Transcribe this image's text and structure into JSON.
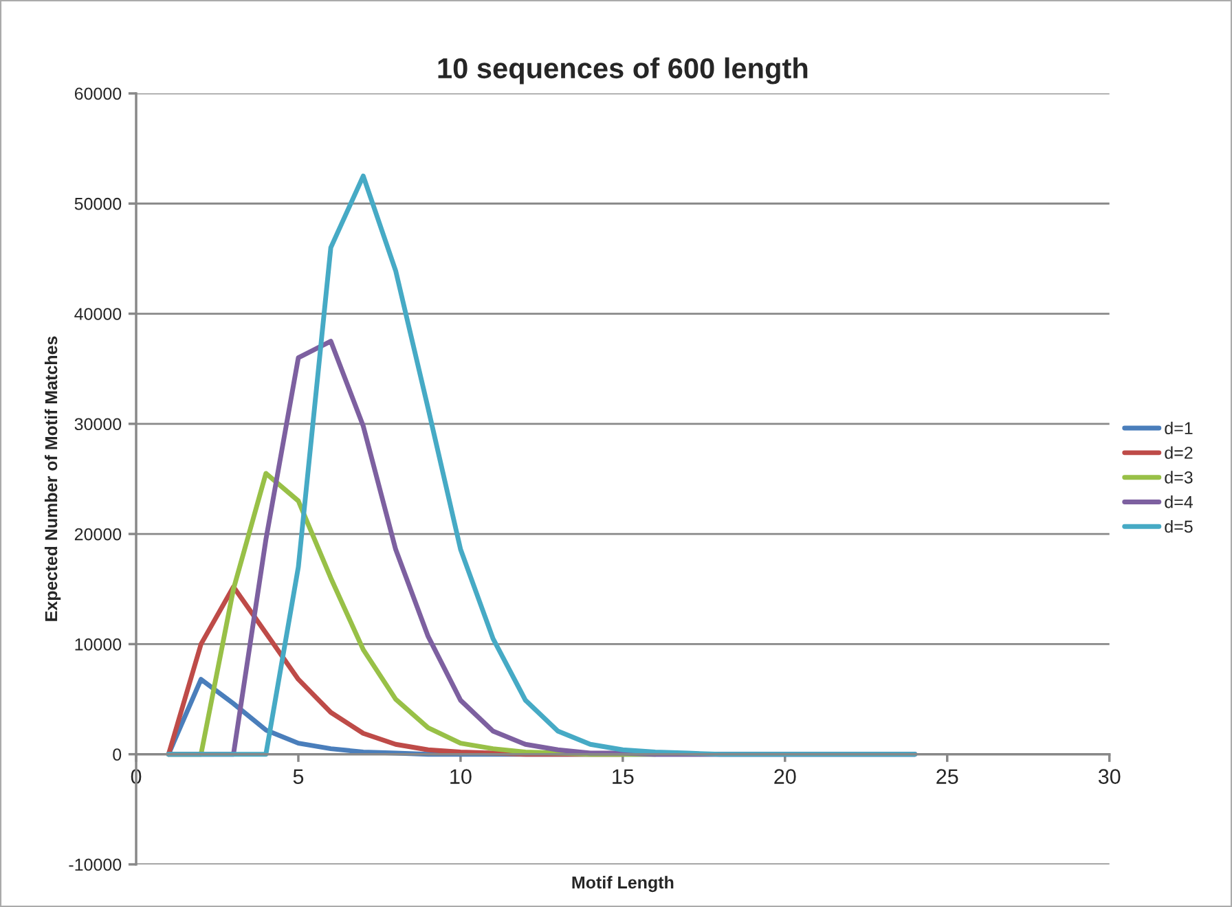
{
  "chart_data": {
    "type": "line",
    "title": "10 sequences of 600 length",
    "xlabel": "Motif Length",
    "ylabel": "Expected Number of Motif Matches",
    "x": [
      1,
      2,
      3,
      4,
      5,
      6,
      7,
      8,
      9,
      10,
      11,
      12,
      13,
      14,
      15,
      16,
      17,
      18,
      19,
      20,
      21,
      22,
      23,
      24
    ],
    "series": [
      {
        "name": "d=1",
        "color": "#4a7ebb",
        "values": [
          0,
          6800,
          4600,
          2200,
          1000,
          500,
          200,
          100,
          0,
          0,
          0,
          0,
          0,
          0,
          0,
          0,
          0,
          0,
          0,
          0,
          0,
          0,
          0,
          0
        ]
      },
      {
        "name": "d=2",
        "color": "#be4b48",
        "values": [
          0,
          10000,
          15200,
          11000,
          6800,
          3800,
          1900,
          900,
          400,
          200,
          100,
          0,
          0,
          0,
          0,
          null,
          null,
          null,
          null,
          null,
          null,
          null,
          null,
          null
        ]
      },
      {
        "name": "d=3",
        "color": "#98c047",
        "values": [
          0,
          0,
          15000,
          25500,
          23000,
          16000,
          9500,
          5000,
          2400,
          1000,
          500,
          200,
          100,
          0,
          0,
          0,
          null,
          null,
          null,
          null,
          null,
          null,
          null,
          null
        ]
      },
      {
        "name": "d=4",
        "color": "#7d60a0",
        "values": [
          0,
          0,
          0,
          19500,
          36000,
          37500,
          29800,
          18600,
          10700,
          4900,
          2100,
          900,
          400,
          100,
          100,
          0,
          0,
          0,
          0,
          0,
          0,
          0,
          0,
          0
        ]
      },
      {
        "name": "d=5",
        "color": "#46aac5",
        "values": [
          0,
          0,
          0,
          0,
          17000,
          46000,
          52500,
          43900,
          31400,
          18600,
          10500,
          4900,
          2100,
          900,
          400,
          200,
          100,
          0,
          0,
          0,
          0,
          0,
          0,
          0
        ]
      }
    ],
    "xlim": [
      0,
      30
    ],
    "xticks": [
      0,
      5,
      10,
      15,
      20,
      25,
      30
    ],
    "ylim": [
      -10000,
      60000
    ],
    "yticks": [
      -10000,
      0,
      10000,
      20000,
      30000,
      40000,
      50000,
      60000
    ],
    "grid": "y",
    "legend": "right",
    "marker": "none",
    "line_style": "solid"
  }
}
